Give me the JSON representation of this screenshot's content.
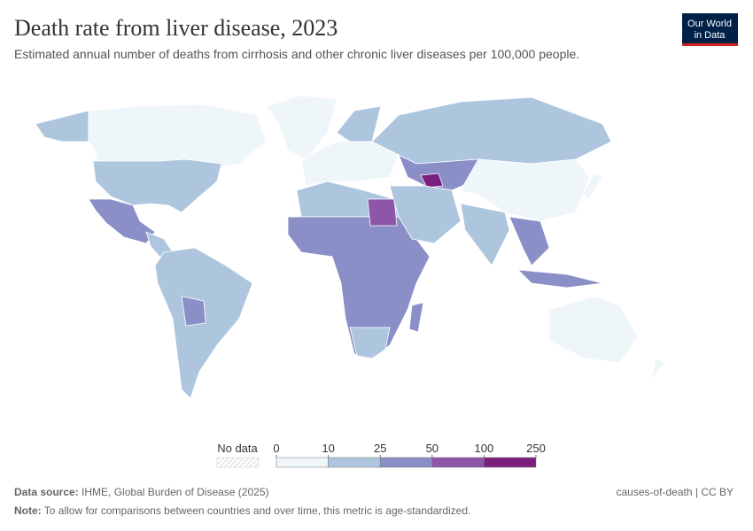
{
  "header": {
    "title": "Death rate from liver disease, 2023",
    "subtitle": "Estimated annual number of deaths from cirrhosis and other chronic liver diseases per 100,000 people.",
    "logo": [
      "Our World",
      "in Data"
    ]
  },
  "legend": {
    "no_data_label": "No data",
    "bins": [
      0,
      10,
      25,
      50,
      100,
      250
    ],
    "colors": [
      "#eef6fa",
      "#adc6de",
      "#8a8fc8",
      "#8e55a8",
      "#7b1f7c"
    ]
  },
  "footer": {
    "source_label": "Data source:",
    "source": "IHME, Global Burden of Disease (2025)",
    "credit": "causes-of-death | CC BY",
    "note_label": "Note:",
    "note": "To allow for comparisons between countries and over time, this metric is age-standardized."
  }
}
